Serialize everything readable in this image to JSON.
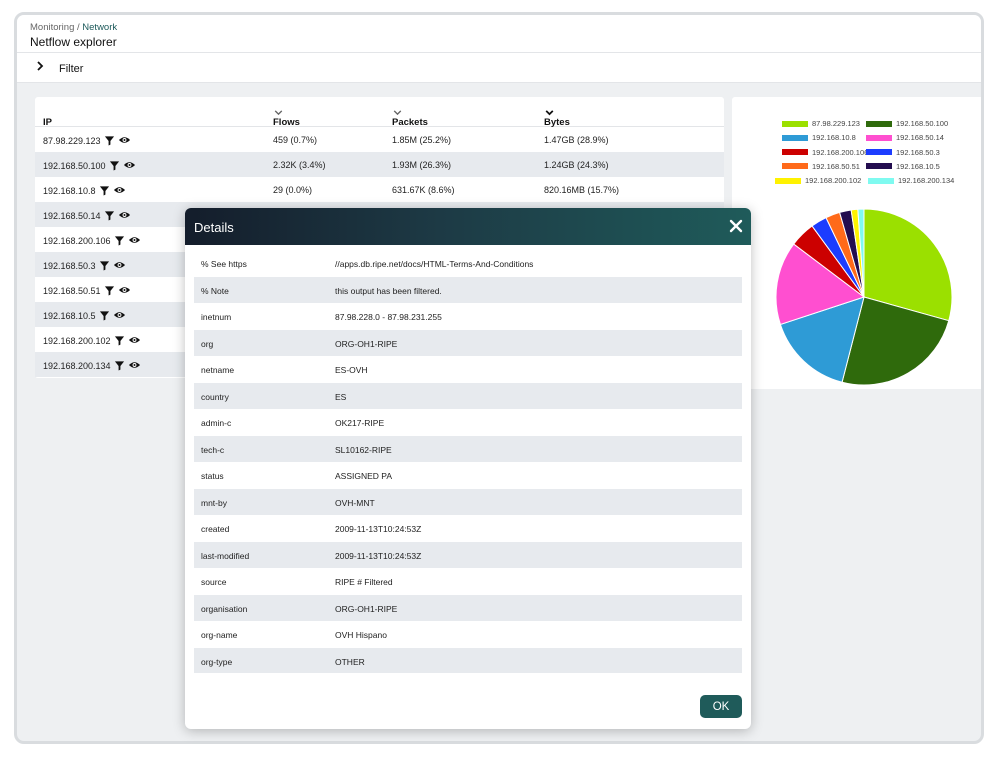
{
  "breadcrumb": {
    "parent": "Monitoring",
    "separator": " / ",
    "current": "Network"
  },
  "page_title": "Netflow explorer",
  "filter": {
    "label": "Filter"
  },
  "table": {
    "headers": {
      "ip": "IP",
      "flows": "Flows",
      "packets": "Packets",
      "bytes": "Bytes"
    },
    "rows": [
      {
        "ip": "87.98.229.123",
        "flows": "459 (0.7%)",
        "packets": "1.85M (25.2%)",
        "bytes": "1.47GB (28.9%)"
      },
      {
        "ip": "192.168.50.100",
        "flows": "2.32K (3.4%)",
        "packets": "1.93M (26.3%)",
        "bytes": "1.24GB (24.3%)"
      },
      {
        "ip": "192.168.10.8",
        "flows": "29 (0.0%)",
        "packets": "631.67K (8.6%)",
        "bytes": "820.16MB (15.7%)"
      },
      {
        "ip": "192.168.50.14",
        "flows": "",
        "packets": "",
        "bytes": ""
      },
      {
        "ip": "192.168.200.106",
        "flows": "",
        "packets": "",
        "bytes": ""
      },
      {
        "ip": "192.168.50.3",
        "flows": "",
        "packets": "",
        "bytes": ""
      },
      {
        "ip": "192.168.50.51",
        "flows": "",
        "packets": "",
        "bytes": ""
      },
      {
        "ip": "192.168.10.5",
        "flows": "",
        "packets": "",
        "bytes": ""
      },
      {
        "ip": "192.168.200.102",
        "flows": "",
        "packets": "",
        "bytes": ""
      },
      {
        "ip": "192.168.200.134",
        "flows": "",
        "packets": "",
        "bytes": ""
      }
    ]
  },
  "chart_data": {
    "type": "pie",
    "legend_position": "top",
    "slices": [
      {
        "label": "87.98.229.123",
        "value": 28.9,
        "color": "#9be000"
      },
      {
        "label": "192.168.50.100",
        "value": 24.3,
        "color": "#2f6a0c"
      },
      {
        "label": "192.168.10.8",
        "value": 15.7,
        "color": "#2e9bd6"
      },
      {
        "label": "192.168.50.14",
        "value": 15.1,
        "color": "#ff4fd0"
      },
      {
        "label": "192.168.200.106",
        "value": 4.6,
        "color": "#cc0000"
      },
      {
        "label": "192.168.50.3",
        "value": 2.9,
        "color": "#1c3cff"
      },
      {
        "label": "192.168.50.51",
        "value": 2.6,
        "color": "#ff6a1a"
      },
      {
        "label": "192.168.10.5",
        "value": 2.1,
        "color": "#230d4f"
      },
      {
        "label": "192.168.200.102",
        "value": 1.2,
        "color": "#fff200"
      },
      {
        "label": "192.168.200.134",
        "value": 1.1,
        "color": "#7ffaf0"
      }
    ]
  },
  "modal": {
    "title": "Details",
    "ok_label": "OK",
    "rows": [
      {
        "key": "% See https",
        "value": "//apps.db.ripe.net/docs/HTML-Terms-And-Conditions"
      },
      {
        "key": "% Note",
        "value": "this output has been filtered."
      },
      {
        "key": "inetnum",
        "value": "87.98.228.0 - 87.98.231.255"
      },
      {
        "key": "org",
        "value": "ORG-OH1-RIPE"
      },
      {
        "key": "netname",
        "value": "ES-OVH"
      },
      {
        "key": "country",
        "value": "ES"
      },
      {
        "key": "admin-c",
        "value": "OK217-RIPE"
      },
      {
        "key": "tech-c",
        "value": "SL10162-RIPE"
      },
      {
        "key": "status",
        "value": "ASSIGNED PA"
      },
      {
        "key": "mnt-by",
        "value": "OVH-MNT"
      },
      {
        "key": "created",
        "value": "2009-11-13T10:24:53Z"
      },
      {
        "key": "last-modified",
        "value": "2009-11-13T10:24:53Z"
      },
      {
        "key": "source",
        "value": "RIPE # Filtered"
      },
      {
        "key": "organisation",
        "value": "ORG-OH1-RIPE"
      },
      {
        "key": "org-name",
        "value": "OVH Hispano"
      },
      {
        "key": "org-type",
        "value": "OTHER"
      }
    ]
  },
  "icons": {
    "filter_toggle": "chevron-right-icon",
    "sort": "chevron-down-icon",
    "row_filter": "funnel-icon",
    "row_view": "eye-icon",
    "modal_close": "close-icon"
  }
}
